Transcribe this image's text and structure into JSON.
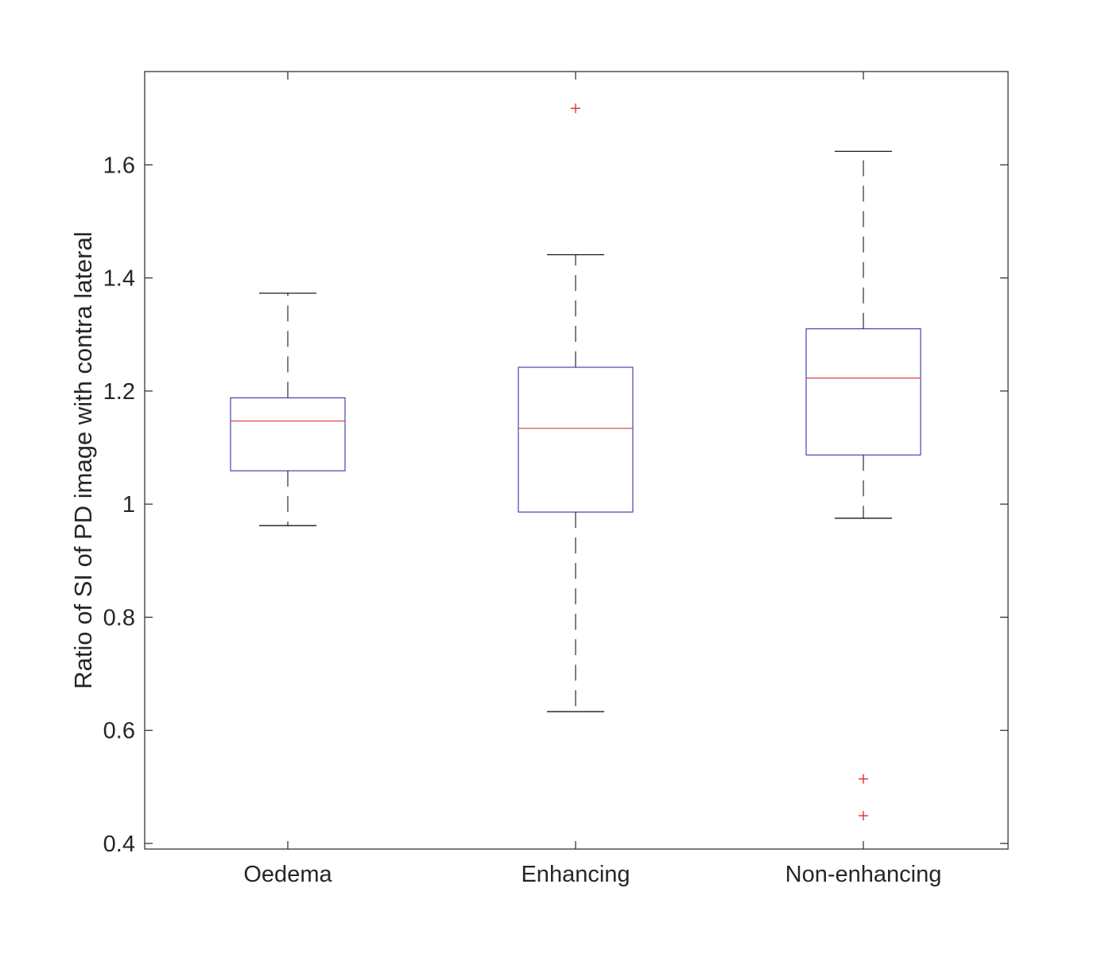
{
  "chart_data": {
    "type": "boxplot",
    "title": "",
    "xlabel": "",
    "ylabel": "Ratio of SI of PD image with contra lateral",
    "ylim": [
      0.39,
      1.765
    ],
    "yticks": [
      0.4,
      0.6,
      0.8,
      1,
      1.2,
      1.4,
      1.6
    ],
    "ytick_labels": [
      "0.4",
      "0.6",
      "0.8",
      "1",
      "1.2",
      "1.4",
      "1.6"
    ],
    "categories": [
      "Oedema",
      "Enhancing",
      "Non-enhancing"
    ],
    "grid": false,
    "series": [
      {
        "name": "Oedema",
        "whisker_low": 0.962,
        "q1": 1.059,
        "median": 1.147,
        "q3": 1.188,
        "whisker_high": 1.373,
        "outliers": []
      },
      {
        "name": "Enhancing",
        "whisker_low": 0.633,
        "q1": 0.986,
        "median": 1.134,
        "q3": 1.242,
        "whisker_high": 1.441,
        "outliers": [
          1.7
        ]
      },
      {
        "name": "Non-enhancing",
        "whisker_low": 0.975,
        "q1": 1.087,
        "median": 1.223,
        "q3": 1.31,
        "whisker_high": 1.624,
        "outliers": [
          0.514,
          0.449
        ]
      }
    ],
    "colors": {
      "box": "#1f1fa0",
      "median": "#e03a3a",
      "whisker": "#000000",
      "outlier": "#e02020",
      "axis": "#262626"
    }
  }
}
